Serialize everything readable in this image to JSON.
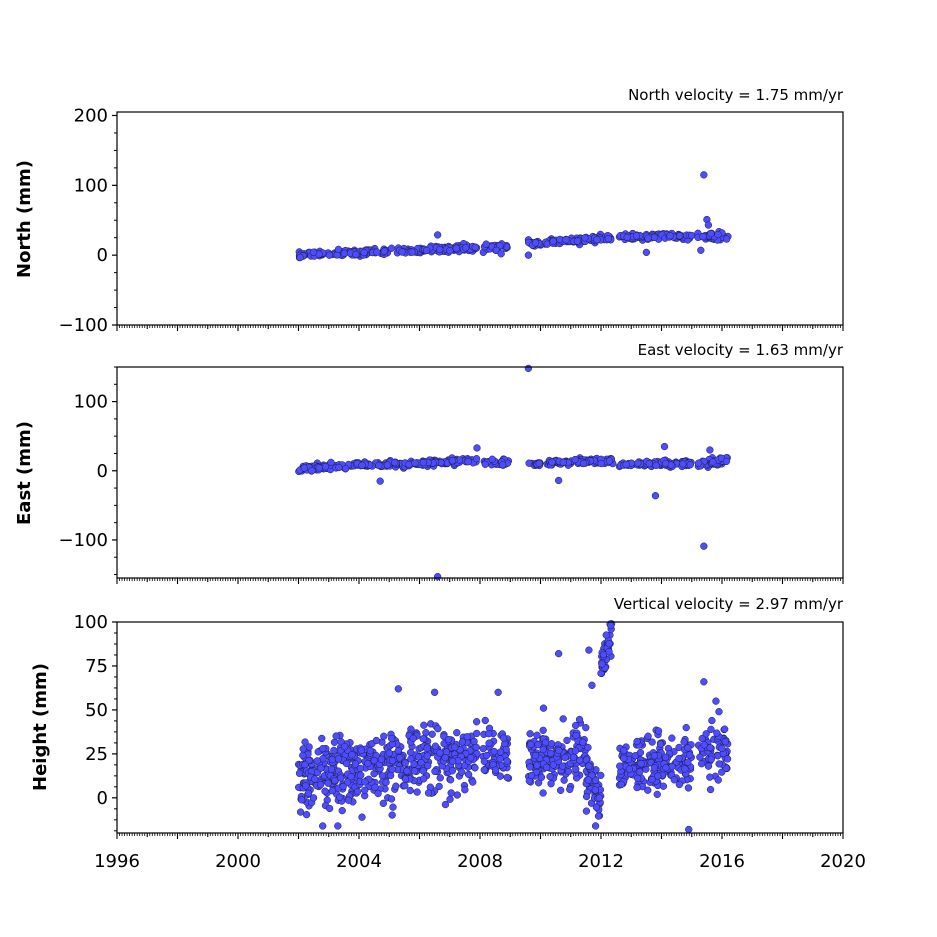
{
  "chart_data": [
    {
      "type": "scatter",
      "title": "North velocity = 1.75 mm/yr",
      "ylabel": "North (mm)",
      "xlim": [
        1996,
        2020
      ],
      "ylim": [
        -100,
        205
      ],
      "yticks": [
        -100,
        0,
        100,
        200
      ],
      "ytick_labels": [
        "−100",
        "0",
        "100",
        "200"
      ],
      "grid": false,
      "marker_color": "#4d4dff",
      "segments": [
        {
          "x0": 2002.0,
          "x1": 2007.9,
          "y0": 0,
          "y1": 11,
          "spread": 2.2,
          "n": 230
        },
        {
          "x0": 2008.1,
          "x1": 2008.95,
          "y0": 11,
          "y1": 13,
          "spread": 2.0,
          "n": 30
        },
        {
          "x0": 2009.6,
          "x1": 2012.4,
          "y0": 16,
          "y1": 25,
          "spread": 2.2,
          "n": 110
        },
        {
          "x0": 2012.6,
          "x1": 2015.0,
          "y0": 26,
          "y1": 27,
          "spread": 2.0,
          "n": 90
        },
        {
          "x0": 2015.2,
          "x1": 2016.2,
          "y0": 27,
          "y1": 27,
          "spread": 3.5,
          "n": 45
        }
      ],
      "outliers": [
        [
          2006.6,
          29
        ],
        [
          2009.6,
          0
        ],
        [
          2013.5,
          4
        ],
        [
          2015.3,
          7
        ],
        [
          2015.4,
          115
        ],
        [
          2015.5,
          51
        ],
        [
          2015.55,
          43
        ],
        [
          2008.7,
          2
        ]
      ]
    },
    {
      "type": "scatter",
      "title": "East velocity = 1.63 mm/yr",
      "ylabel": "East (mm)",
      "xlim": [
        1996,
        2020
      ],
      "ylim": [
        -155,
        150
      ],
      "yticks": [
        -100,
        0,
        100
      ],
      "ytick_labels": [
        "−100",
        "0",
        "100"
      ],
      "grid": false,
      "marker_color": "#4d4dff",
      "segments": [
        {
          "x0": 2002.0,
          "x1": 2007.9,
          "y0": 3,
          "y1": 15,
          "spread": 2.2,
          "n": 230
        },
        {
          "x0": 2008.1,
          "x1": 2008.95,
          "y0": 13,
          "y1": 12,
          "spread": 2.0,
          "n": 30
        },
        {
          "x0": 2009.6,
          "x1": 2012.4,
          "y0": 10,
          "y1": 15,
          "spread": 2.2,
          "n": 110
        },
        {
          "x0": 2012.6,
          "x1": 2015.0,
          "y0": 8,
          "y1": 12,
          "spread": 2.0,
          "n": 90
        },
        {
          "x0": 2015.2,
          "x1": 2016.2,
          "y0": 10,
          "y1": 15,
          "spread": 3.5,
          "n": 45
        }
      ],
      "outliers": [
        [
          2009.6,
          148
        ],
        [
          2006.6,
          -153
        ],
        [
          2004.7,
          -15
        ],
        [
          2010.6,
          -14
        ],
        [
          2013.8,
          -36
        ],
        [
          2014.1,
          35
        ],
        [
          2015.4,
          -109
        ],
        [
          2015.6,
          30
        ],
        [
          2007.9,
          33
        ]
      ]
    },
    {
      "type": "scatter",
      "title": "Vertical velocity = 2.97 mm/yr",
      "ylabel": "Height (mm)",
      "xlabel": "",
      "xlim": [
        1996,
        2020
      ],
      "ylim": [
        -20,
        100
      ],
      "yticks": [
        0,
        25,
        50,
        75,
        100
      ],
      "ytick_labels": [
        "0",
        "25",
        "50",
        "75",
        "100"
      ],
      "xticks": [
        1996,
        2000,
        2004,
        2008,
        2012,
        2016,
        2020
      ],
      "xtick_labels": [
        "1996",
        "2000",
        "2004",
        "2008",
        "2012",
        "2016",
        "2020"
      ],
      "grid": false,
      "marker_color": "#4d4dff",
      "segments": [
        {
          "x0": 2002.0,
          "x1": 2004.0,
          "y0": 10,
          "y1": 14,
          "spread": 10,
          "n": 200
        },
        {
          "x0": 2004.0,
          "x1": 2005.0,
          "y0": 17,
          "y1": 18,
          "spread": 8,
          "n": 70
        },
        {
          "x0": 2005.0,
          "x1": 2007.9,
          "y0": 20,
          "y1": 24,
          "spread": 9,
          "n": 230
        },
        {
          "x0": 2008.1,
          "x1": 2008.95,
          "y0": 26,
          "y1": 20,
          "spread": 8,
          "n": 60
        },
        {
          "x0": 2009.6,
          "x1": 2011.5,
          "y0": 22,
          "y1": 24,
          "spread": 8,
          "n": 160
        },
        {
          "x0": 2011.5,
          "x1": 2012.0,
          "y0": 15,
          "y1": -5,
          "spread": 9,
          "n": 50
        },
        {
          "x0": 2012.0,
          "x1": 2012.35,
          "y0": 72,
          "y1": 96,
          "spread": 6,
          "n": 40
        },
        {
          "x0": 2012.6,
          "x1": 2015.0,
          "y0": 17,
          "y1": 20,
          "spread": 8,
          "n": 190
        },
        {
          "x0": 2015.2,
          "x1": 2016.2,
          "y0": 27,
          "y1": 24,
          "spread": 7,
          "n": 70
        }
      ],
      "outliers": [
        [
          2005.3,
          62
        ],
        [
          2006.5,
          60
        ],
        [
          2008.6,
          60
        ],
        [
          2010.1,
          51
        ],
        [
          2010.6,
          82
        ],
        [
          2011.6,
          84
        ],
        [
          2011.7,
          64
        ],
        [
          2015.4,
          66
        ],
        [
          2015.8,
          55
        ],
        [
          2015.9,
          49
        ],
        [
          2014.9,
          -18
        ],
        [
          2003.3,
          -16
        ],
        [
          2002.8,
          -16
        ],
        [
          2004.1,
          -11
        ]
      ]
    }
  ]
}
